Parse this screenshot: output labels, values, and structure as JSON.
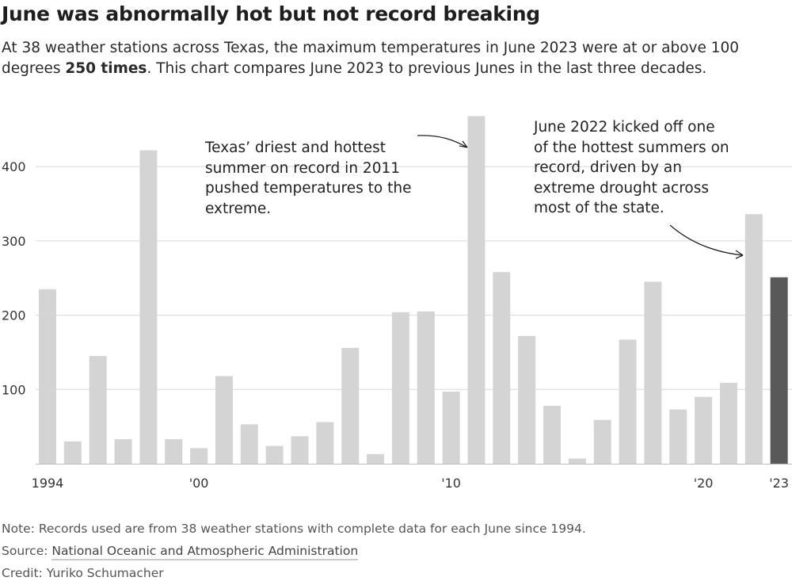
{
  "header": {
    "title": "June was abnormally hot but not record breaking",
    "subtitle_pre": "At 38 weather stations across Texas, the maximum temperatures in June 2023 were at or above 100 degrees ",
    "subtitle_bold": "250 times",
    "subtitle_post": ". This chart compares June 2023 to previous Junes in the last three decades."
  },
  "annotations": {
    "a2011": "Texas’ driest and hottest summer on record in 2011 pushed temperatures to the extreme.",
    "a2022": "June 2022 kicked off one of the hottest summers on record, driven by an extreme drought across most of the state."
  },
  "footer": {
    "note": "Note: Records used are from 38 weather stations with complete data for each June since 1994.",
    "source_label": "Source: ",
    "source_link": "National Oceanic and Atmospheric Administration",
    "credit": "Credit: Yuriko Schumacher"
  },
  "colors": {
    "bar": "#d4d4d4",
    "highlight": "#595959",
    "grid": "#d9d9d9"
  },
  "chart_data": {
    "type": "bar",
    "title": "June was abnormally hot but not record breaking",
    "categories": [
      "1994",
      "1995",
      "1996",
      "1997",
      "1998",
      "1999",
      "2000",
      "2001",
      "2002",
      "2003",
      "2004",
      "2005",
      "2006",
      "2007",
      "2008",
      "2009",
      "2010",
      "2011",
      "2012",
      "2013",
      "2014",
      "2015",
      "2016",
      "2017",
      "2018",
      "2019",
      "2020",
      "2021",
      "2022",
      "2023"
    ],
    "values": [
      235,
      30,
      145,
      33,
      422,
      33,
      21,
      118,
      53,
      24,
      37,
      56,
      156,
      13,
      204,
      205,
      97,
      468,
      258,
      172,
      78,
      7,
      59,
      167,
      245,
      73,
      90,
      109,
      336,
      251
    ],
    "highlight": "2023",
    "x_tick_labels": [
      {
        "category": "1994",
        "label": "1994"
      },
      {
        "category": "2000",
        "label": "'00"
      },
      {
        "category": "2010",
        "label": "'10"
      },
      {
        "category": "2020",
        "label": "'20"
      },
      {
        "category": "2023",
        "label": "'23"
      }
    ],
    "y_ticks": [
      100,
      200,
      300,
      400
    ],
    "ylim": [
      0,
      480
    ],
    "grid": true,
    "xlabel": "",
    "ylabel": ""
  }
}
